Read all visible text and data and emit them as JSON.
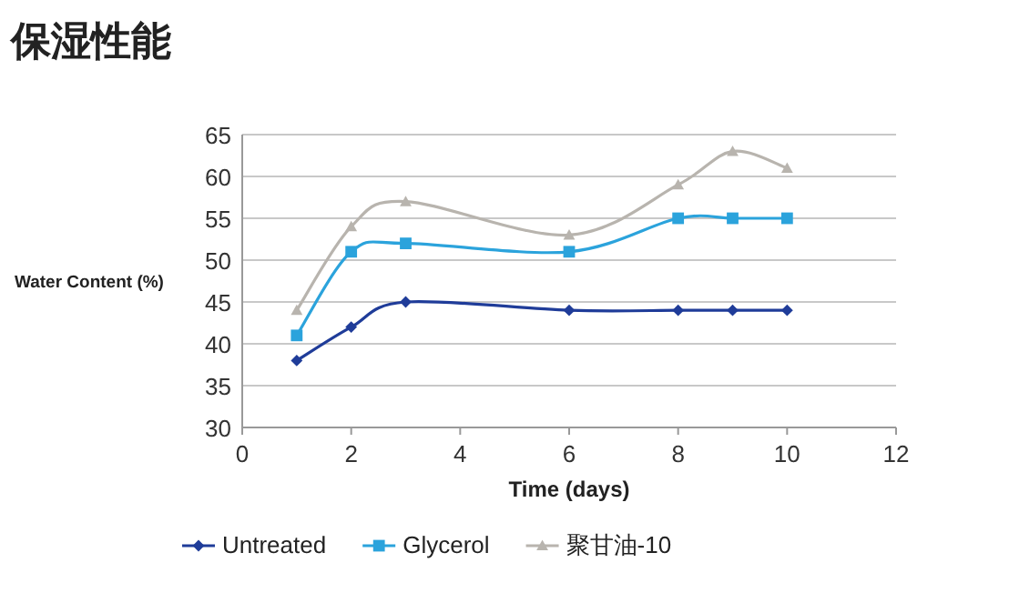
{
  "chart_data": {
    "type": "line",
    "title": "保湿性能",
    "xlabel": "Time (days)",
    "ylabel": "Water Content (%)",
    "x": [
      1,
      2,
      3,
      6,
      8,
      9,
      10
    ],
    "series": [
      {
        "name": "Untreated",
        "color": "#1f3c99",
        "marker": "diamond",
        "values": [
          38,
          42,
          45,
          44,
          44,
          44,
          44
        ]
      },
      {
        "name": "Glycerol",
        "color": "#2ba3dc",
        "marker": "square",
        "values": [
          41,
          51,
          52,
          51,
          55,
          55,
          55
        ]
      },
      {
        "name": "聚甘油-10",
        "color": "#b8b4ae",
        "marker": "triangle",
        "values": [
          44,
          54,
          57,
          53,
          59,
          63,
          61
        ]
      }
    ],
    "xlim": [
      0,
      12
    ],
    "xticks": [
      0,
      2,
      4,
      6,
      8,
      10,
      12
    ],
    "ylim": [
      30,
      65
    ],
    "yticks": [
      30,
      35,
      40,
      45,
      50,
      55,
      60,
      65
    ],
    "grid": "y",
    "legend": "bottom",
    "line_style": "solid"
  }
}
